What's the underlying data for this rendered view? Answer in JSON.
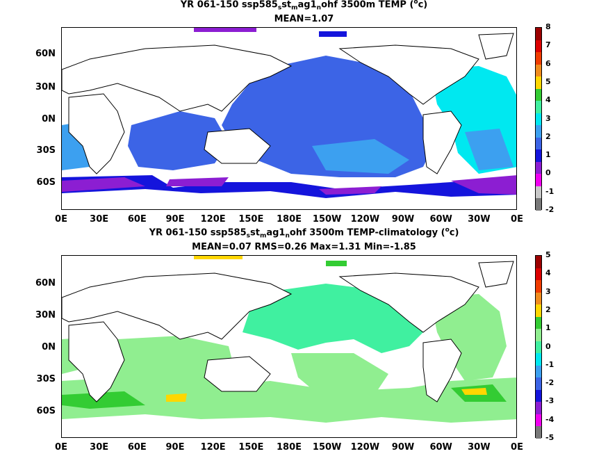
{
  "panels": [
    {
      "title_prefix": "YR 061-150 ssp585",
      "title_s1": "s",
      "title_mid": "st",
      "title_s2": "m",
      "title_mid2": "ag1",
      "title_s3": "n",
      "title_suffix": "ohf 3500m TEMP (",
      "title_sup": "o",
      "title_end": "c)",
      "stats": "MEAN=1.07",
      "colorbar_ticks": [
        "8",
        "7",
        "6",
        "5",
        "4",
        "3",
        "2",
        "1",
        "0",
        "-1",
        "-2"
      ],
      "colorbar_colors": [
        "#9c0000",
        "#dc0000",
        "#f03c00",
        "#f08c1e",
        "#ffd700",
        "#33cc33",
        "#40f0a0",
        "#00e8f0",
        "#3ca0f0",
        "#3c64e6",
        "#1414dc",
        "#8c1ed2",
        "#f000f0",
        "#c8c8c8",
        "#787878"
      ]
    },
    {
      "title_prefix": "YR 061-150 ssp585",
      "title_s1": "s",
      "title_mid": "st",
      "title_s2": "m",
      "title_mid2": "ag1",
      "title_s3": "n",
      "title_suffix": "ohf 3500m TEMP-climatology (",
      "title_sup": "o",
      "title_end": "c)",
      "stats": "MEAN=0.07   RMS=0.26   Max=1.31   Min=-1.85",
      "colorbar_ticks": [
        "5",
        "4",
        "3",
        "2",
        "1",
        "0",
        "-1",
        "-2",
        "-3",
        "-4",
        "-5"
      ],
      "colorbar_colors": [
        "#9c0000",
        "#dc0000",
        "#f03c00",
        "#f08c1e",
        "#ffd700",
        "#33cc33",
        "#90ee90",
        "#40f0a0",
        "#00e8f0",
        "#3ca0f0",
        "#3c64e6",
        "#1414dc",
        "#8c1ed2",
        "#f000f0",
        "#787878"
      ]
    }
  ],
  "lat_labels": [
    "60N",
    "30N",
    "0N",
    "30S",
    "60S"
  ],
  "lon_labels": [
    "0E",
    "30E",
    "60E",
    "90E",
    "120E",
    "150E",
    "180E",
    "150W",
    "120W",
    "90W",
    "60W",
    "30W",
    "0E"
  ]
}
